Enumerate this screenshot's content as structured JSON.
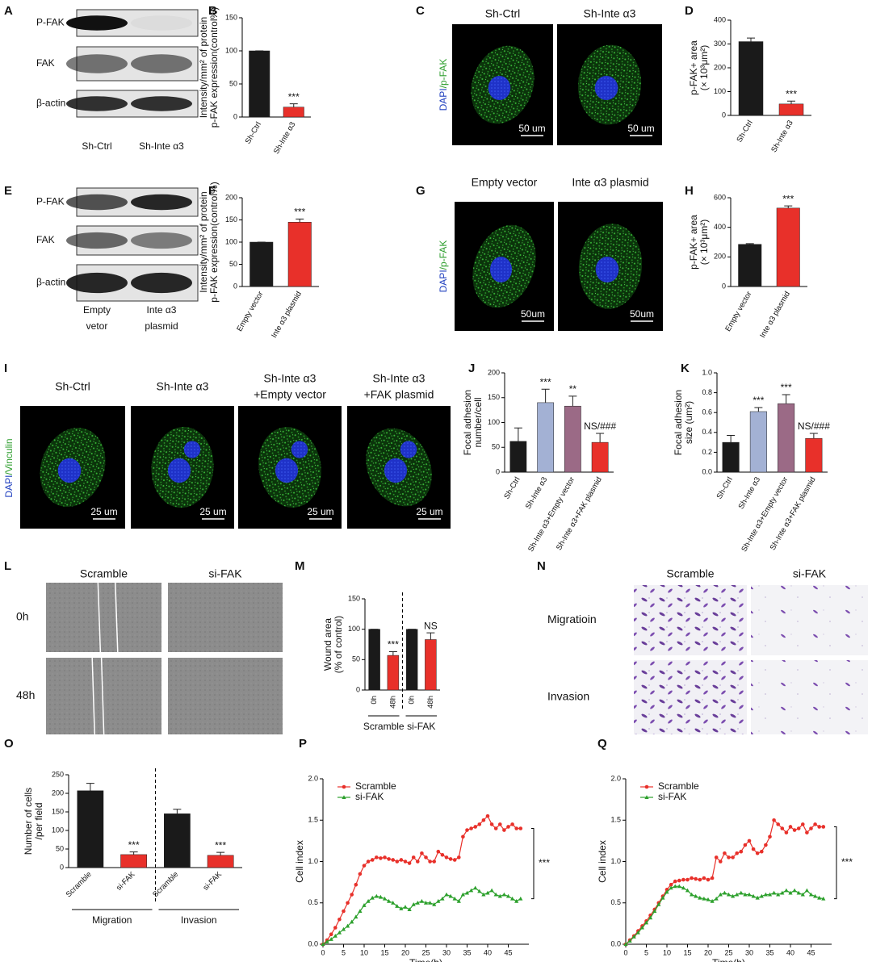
{
  "blots": [
    {
      "panel": "A",
      "rows": [
        "P-FAK",
        "FAK",
        "β-actin"
      ],
      "lanes": [
        [
          "Sh-Ctrl"
        ],
        [
          "Sh-Inte α3"
        ]
      ]
    },
    {
      "panel": "E",
      "rows": [
        "P-FAK",
        "FAK",
        "β-actin"
      ],
      "lanes": [
        [
          "Empty",
          "vetor"
        ],
        [
          "Inte α3",
          "plasmid"
        ]
      ]
    }
  ],
  "micrographs": [
    {
      "panel": "C",
      "label": [
        "DAPI",
        "/p-FAK"
      ],
      "titles": [
        [
          "Sh-Ctrl"
        ],
        [
          "Sh-Inte α3"
        ]
      ],
      "scale_label": "50 um"
    },
    {
      "panel": "G",
      "label": [
        "DAPI",
        "/p-FAK"
      ],
      "titles": [
        [
          "Empty vector"
        ],
        [
          "Inte α3 plasmid"
        ]
      ],
      "scale_label": "50um"
    },
    {
      "panel": "I",
      "label": [
        "DAPI",
        "/Vinculin"
      ],
      "titles": [
        [
          "Sh-Ctrl"
        ],
        [
          "Sh-Inte α3"
        ],
        [
          "Sh-Inte α3",
          "+Empty vector"
        ],
        [
          "Sh-Inte α3",
          "+FAK plasmid"
        ]
      ],
      "scale_label": "25 um"
    }
  ],
  "image_grids": [
    {
      "panel": "L",
      "columns": [
        "Scramble",
        "si-FAK"
      ],
      "rows": [
        "0h",
        "48h"
      ]
    },
    {
      "panel": "N",
      "columns": [
        "Scramble",
        "si-FAK"
      ],
      "rows": [
        "Migratioin",
        "Invasion"
      ]
    }
  ],
  "chart_data": [
    {
      "type": "bar",
      "panel": "B",
      "ylabel": [
        "Intensity/mm² of protein",
        "p-FAK expression(control%)"
      ],
      "categories": [
        "Sh-Ctrl",
        "Sh-Inte α3"
      ],
      "values": [
        100,
        15
      ],
      "errors": [
        0,
        5
      ],
      "colors": [
        "#1a1a1a",
        "#e8302a"
      ],
      "annotations": [
        null,
        "***"
      ],
      "ylim": [
        0,
        150
      ],
      "yticks": [
        0,
        50,
        100,
        150
      ]
    },
    {
      "type": "bar",
      "panel": "D",
      "ylabel": [
        "p-FAK+ area",
        "(× 10³μm²)"
      ],
      "categories": [
        "Sh-Ctrl",
        "Sh-Inte α3"
      ],
      "values": [
        310,
        48
      ],
      "errors": [
        15,
        12
      ],
      "colors": [
        "#1a1a1a",
        "#e8302a"
      ],
      "annotations": [
        null,
        "***"
      ],
      "ylim": [
        0,
        400
      ],
      "yticks": [
        0,
        100,
        200,
        300,
        400
      ]
    },
    {
      "type": "bar",
      "panel": "F",
      "ylabel": [
        "Intensity/mm² of protein",
        "p-FAK expression(control%)"
      ],
      "categories": [
        "Empty vector",
        "Inte α3 plasmid"
      ],
      "values": [
        100,
        145
      ],
      "errors": [
        0,
        7
      ],
      "colors": [
        "#1a1a1a",
        "#e8302a"
      ],
      "annotations": [
        null,
        "***"
      ],
      "ylim": [
        0,
        200
      ],
      "yticks": [
        0,
        50,
        100,
        150,
        200
      ]
    },
    {
      "type": "bar",
      "panel": "H",
      "ylabel": [
        "p-FAK+ area",
        "(× 10³μm²)"
      ],
      "categories": [
        "Empty vector",
        "Inte α3 plasmid"
      ],
      "values": [
        285,
        530
      ],
      "errors": [
        5,
        15
      ],
      "colors": [
        "#1a1a1a",
        "#e8302a"
      ],
      "annotations": [
        null,
        "***"
      ],
      "ylim": [
        0,
        600
      ],
      "yticks": [
        0,
        200,
        400,
        600
      ]
    },
    {
      "type": "bar",
      "panel": "J",
      "ylabel": [
        "Focal adhesion",
        "number/cell"
      ],
      "categories": [
        "Sh-Ctrl",
        "Sh-Inte α3",
        "Sh-Inte α3+Empty vector",
        "Sh-Inte α3+FAK plasmid"
      ],
      "values": [
        62,
        140,
        133,
        60
      ],
      "errors": [
        27,
        27,
        20,
        18
      ],
      "colors": [
        "#1a1a1a",
        "#a3b1d4",
        "#9b6a86",
        "#e8302a"
      ],
      "annotations": [
        null,
        "***",
        "**",
        "NS/###"
      ],
      "ylim": [
        0,
        200
      ],
      "yticks": [
        0,
        50,
        100,
        150,
        200
      ]
    },
    {
      "type": "bar",
      "panel": "K",
      "ylabel": [
        "Focal adhesion",
        "size (um²)"
      ],
      "categories": [
        "Sh-Ctrl",
        "Sh-Inte α3",
        "Sh-Inte α3+Empty vector",
        "Sh-Inte α3+FAK plasmid"
      ],
      "values": [
        0.3,
        0.61,
        0.69,
        0.34
      ],
      "errors": [
        0.07,
        0.04,
        0.09,
        0.05
      ],
      "colors": [
        "#1a1a1a",
        "#a3b1d4",
        "#9b6a86",
        "#e8302a"
      ],
      "annotations": [
        null,
        "***",
        "***",
        "NS/###"
      ],
      "ylim": [
        0,
        1.0
      ],
      "yticks": [
        {
          "value": 0,
          "label": "0.0"
        },
        0.2,
        0.4,
        0.6,
        0.8,
        {
          "value": 1,
          "label": "1.0"
        }
      ]
    },
    {
      "type": "bar",
      "panel": "M",
      "ylabel": [
        "Wound area",
        "(% of control)"
      ],
      "categories": [
        "0h",
        "48h",
        "0h",
        "48h"
      ],
      "values": [
        100,
        57,
        100,
        83
      ],
      "errors": [
        0,
        6,
        0,
        11
      ],
      "colors": [
        "#1a1a1a",
        "#e8302a",
        "#1a1a1a",
        "#e8302a"
      ],
      "annotations": [
        null,
        "***",
        null,
        "NS"
      ],
      "groups": [
        "Scramble",
        "si-FAK"
      ],
      "ylim": [
        0,
        150
      ],
      "yticks": [
        0,
        50,
        100,
        150
      ]
    },
    {
      "type": "bar",
      "panel": "O",
      "ylabel": [
        "Number of cells",
        "/per field"
      ],
      "categories": [
        "Scramble",
        "si-FAK",
        "Scramble",
        "si-FAK"
      ],
      "values": [
        207,
        35,
        145,
        33
      ],
      "errors": [
        20,
        7,
        12,
        8
      ],
      "colors": [
        "#1a1a1a",
        "#e8302a",
        "#1a1a1a",
        "#e8302a"
      ],
      "annotations": [
        null,
        "***",
        null,
        "***"
      ],
      "groups": [
        "Migration",
        "Invasion"
      ],
      "ylim": [
        0,
        250
      ],
      "yticks": [
        0,
        50,
        100,
        150,
        200,
        250
      ]
    },
    {
      "type": "line",
      "panel": "P",
      "xlabel": "Time(h)",
      "ylabel": [
        "Cell index"
      ],
      "annotation": "***",
      "legend": "upper left",
      "x": [
        0,
        1,
        2,
        3,
        4,
        5,
        6,
        7,
        8,
        9,
        10,
        11,
        12,
        13,
        14,
        15,
        16,
        17,
        18,
        19,
        20,
        21,
        22,
        23,
        24,
        25,
        26,
        27,
        28,
        29,
        30,
        31,
        32,
        33,
        34,
        35,
        36,
        37,
        38,
        39,
        40,
        41,
        42,
        43,
        44,
        45,
        46,
        47,
        48
      ],
      "series": [
        {
          "name": "Scramble",
          "color": "#e8302a",
          "values": [
            0,
            0.05,
            0.12,
            0.2,
            0.3,
            0.4,
            0.5,
            0.6,
            0.72,
            0.85,
            0.95,
            1.0,
            1.02,
            1.05,
            1.04,
            1.05,
            1.03,
            1.02,
            1.0,
            1.02,
            1.0,
            0.98,
            1.05,
            1.0,
            1.1,
            1.05,
            1.0,
            1.0,
            1.12,
            1.08,
            1.05,
            1.03,
            1.02,
            1.05,
            1.3,
            1.38,
            1.4,
            1.42,
            1.45,
            1.5,
            1.55,
            1.45,
            1.4,
            1.45,
            1.38,
            1.42,
            1.45,
            1.4,
            1.4
          ]
        },
        {
          "name": "si-FAK",
          "color": "#2ca02c",
          "values": [
            0,
            0.03,
            0.06,
            0.1,
            0.14,
            0.18,
            0.22,
            0.27,
            0.33,
            0.4,
            0.47,
            0.52,
            0.56,
            0.58,
            0.57,
            0.55,
            0.52,
            0.5,
            0.46,
            0.43,
            0.45,
            0.42,
            0.48,
            0.5,
            0.52,
            0.5,
            0.5,
            0.48,
            0.52,
            0.55,
            0.6,
            0.58,
            0.55,
            0.52,
            0.6,
            0.62,
            0.65,
            0.68,
            0.64,
            0.6,
            0.62,
            0.65,
            0.6,
            0.58,
            0.6,
            0.58,
            0.55,
            0.52,
            0.55
          ]
        }
      ],
      "xlim": [
        0,
        50
      ],
      "xticks": [
        0,
        5,
        10,
        15,
        20,
        25,
        30,
        35,
        40,
        45
      ],
      "ylim": [
        0,
        2
      ],
      "yticks": [
        {
          "value": 0,
          "label": "0.0"
        },
        0.5,
        {
          "value": 1,
          "label": "1.0"
        },
        1.5,
        {
          "value": 2,
          "label": "2.0"
        }
      ]
    },
    {
      "type": "line",
      "panel": "Q",
      "xlabel": "Time(h)",
      "ylabel": [
        "Cell index"
      ],
      "annotation": "***",
      "legend": "upper left",
      "x": [
        0,
        1,
        2,
        3,
        4,
        5,
        6,
        7,
        8,
        9,
        10,
        11,
        12,
        13,
        14,
        15,
        16,
        17,
        18,
        19,
        20,
        21,
        22,
        23,
        24,
        25,
        26,
        27,
        28,
        29,
        30,
        31,
        32,
        33,
        34,
        35,
        36,
        37,
        38,
        39,
        40,
        41,
        42,
        43,
        44,
        45,
        46,
        47,
        48
      ],
      "series": [
        {
          "name": "Scramble",
          "color": "#e8302a",
          "values": [
            0,
            0.05,
            0.1,
            0.16,
            0.22,
            0.28,
            0.35,
            0.42,
            0.5,
            0.58,
            0.66,
            0.72,
            0.76,
            0.77,
            0.78,
            0.78,
            0.8,
            0.79,
            0.78,
            0.8,
            0.78,
            0.8,
            1.05,
            1.0,
            1.1,
            1.05,
            1.05,
            1.1,
            1.12,
            1.2,
            1.25,
            1.15,
            1.1,
            1.12,
            1.2,
            1.3,
            1.5,
            1.45,
            1.4,
            1.35,
            1.42,
            1.38,
            1.4,
            1.45,
            1.35,
            1.4,
            1.45,
            1.42,
            1.42
          ]
        },
        {
          "name": "si-FAK",
          "color": "#2ca02c",
          "values": [
            0,
            0.04,
            0.09,
            0.14,
            0.2,
            0.26,
            0.32,
            0.4,
            0.48,
            0.56,
            0.63,
            0.68,
            0.7,
            0.7,
            0.68,
            0.65,
            0.6,
            0.58,
            0.56,
            0.55,
            0.54,
            0.52,
            0.55,
            0.6,
            0.62,
            0.6,
            0.58,
            0.6,
            0.62,
            0.6,
            0.6,
            0.58,
            0.56,
            0.58,
            0.6,
            0.6,
            0.62,
            0.6,
            0.62,
            0.65,
            0.62,
            0.65,
            0.62,
            0.6,
            0.65,
            0.6,
            0.58,
            0.56,
            0.55
          ]
        }
      ],
      "xlim": [
        0,
        50
      ],
      "xticks": [
        0,
        5,
        10,
        15,
        20,
        25,
        30,
        35,
        40,
        45
      ],
      "ylim": [
        0,
        2
      ],
      "yticks": [
        {
          "value": 0,
          "label": "0.0"
        },
        0.5,
        {
          "value": 1,
          "label": "1.0"
        },
        1.5,
        {
          "value": 2,
          "label": "2.0"
        }
      ]
    }
  ]
}
